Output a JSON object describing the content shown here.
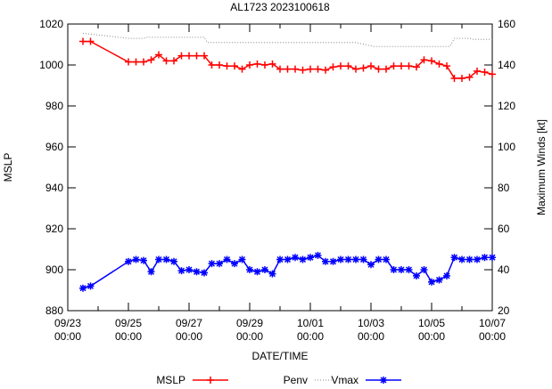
{
  "chart_data": {
    "type": "line",
    "title": "AL1723 2023100618",
    "xlabel": "DATE/TIME",
    "ylabel": "MSLP",
    "y2label": "Maximum Winds [kt]",
    "x_unit": "days since 09/23 00:00",
    "xlim": [
      0,
      14
    ],
    "ylim": [
      880,
      1020
    ],
    "y2lim": [
      20,
      160
    ],
    "grid": false,
    "legend_position": "bottom",
    "x_ticks": [
      {
        "day": 0,
        "line1": "09/23",
        "line2": "00:00"
      },
      {
        "day": 2,
        "line1": "09/25",
        "line2": "00:00"
      },
      {
        "day": 4,
        "line1": "09/27",
        "line2": "00:00"
      },
      {
        "day": 6,
        "line1": "09/29",
        "line2": "00:00"
      },
      {
        "day": 8,
        "line1": "10/01",
        "line2": "00:00"
      },
      {
        "day": 10,
        "line1": "10/03",
        "line2": "00:00"
      },
      {
        "day": 12,
        "line1": "10/05",
        "line2": "00:00"
      },
      {
        "day": 14,
        "line1": "10/07",
        "line2": "00:00"
      }
    ],
    "y_ticks": [
      "880",
      "900",
      "920",
      "940",
      "960",
      "980",
      "1000",
      "1020"
    ],
    "y2_ticks": [
      "20",
      "40",
      "60",
      "80",
      "100",
      "120",
      "140",
      "160"
    ],
    "colors": {
      "MSLP": "#ff0000",
      "Penv": "#888888",
      "Vmax": "#0000ff"
    },
    "series": [
      {
        "name": "MSLP",
        "axis": "y",
        "style": "line-plus",
        "points": [
          [
            0.5,
            1011.5
          ],
          [
            0.75,
            1011.5
          ],
          [
            2.0,
            1001.5
          ],
          [
            2.25,
            1001.5
          ],
          [
            2.5,
            1001.5
          ],
          [
            2.75,
            1002.5
          ],
          [
            3.0,
            1005
          ],
          [
            3.25,
            1002
          ],
          [
            3.5,
            1002
          ],
          [
            3.75,
            1004.5
          ],
          [
            4.0,
            1004.5
          ],
          [
            4.25,
            1004.5
          ],
          [
            4.5,
            1004.5
          ],
          [
            4.75,
            1000
          ],
          [
            5.0,
            1000
          ],
          [
            5.25,
            999.5
          ],
          [
            5.5,
            999.5
          ],
          [
            5.75,
            998
          ],
          [
            6.0,
            1000
          ],
          [
            6.25,
            1000.5
          ],
          [
            6.5,
            1000
          ],
          [
            6.75,
            1000.5
          ],
          [
            7.0,
            998
          ],
          [
            7.25,
            998
          ],
          [
            7.5,
            998
          ],
          [
            7.75,
            997.5
          ],
          [
            8.0,
            998
          ],
          [
            8.25,
            998
          ],
          [
            8.5,
            997.5
          ],
          [
            8.75,
            999
          ],
          [
            9.0,
            999.5
          ],
          [
            9.25,
            999.5
          ],
          [
            9.5,
            998
          ],
          [
            9.75,
            998.5
          ],
          [
            10.0,
            999.5
          ],
          [
            10.25,
            998
          ],
          [
            10.5,
            998
          ],
          [
            10.75,
            999.5
          ],
          [
            11.0,
            999.5
          ],
          [
            11.25,
            999.5
          ],
          [
            11.5,
            999
          ],
          [
            11.75,
            1002.5
          ],
          [
            12.0,
            1002
          ],
          [
            12.25,
            1000.5
          ],
          [
            12.5,
            999.5
          ],
          [
            12.75,
            993.5
          ],
          [
            13.0,
            993.5
          ],
          [
            13.25,
            994
          ],
          [
            13.5,
            997
          ],
          [
            13.75,
            996.5
          ],
          [
            14.0,
            995.5
          ]
        ]
      },
      {
        "name": "Penv",
        "axis": "y",
        "style": "dotted",
        "points": [
          [
            0.5,
            1015.5
          ],
          [
            2.0,
            1013
          ],
          [
            2.5,
            1013
          ],
          [
            2.6,
            1013.5
          ],
          [
            4.5,
            1013.5
          ],
          [
            4.6,
            1011
          ],
          [
            9.5,
            1011
          ],
          [
            9.8,
            1010
          ],
          [
            10.1,
            1009
          ],
          [
            12.6,
            1009
          ],
          [
            12.75,
            1013
          ],
          [
            13.25,
            1013
          ],
          [
            13.4,
            1012.5
          ],
          [
            14.0,
            1012.5
          ]
        ]
      },
      {
        "name": "Vmax",
        "axis": "y2",
        "style": "line-star",
        "points": [
          [
            0.5,
            31
          ],
          [
            0.75,
            32
          ],
          [
            2.0,
            44
          ],
          [
            2.25,
            45
          ],
          [
            2.5,
            44.5
          ],
          [
            2.75,
            39
          ],
          [
            3.0,
            45
          ],
          [
            3.25,
            45
          ],
          [
            3.5,
            44
          ],
          [
            3.75,
            39.5
          ],
          [
            4.0,
            40
          ],
          [
            4.25,
            39
          ],
          [
            4.5,
            38.5
          ],
          [
            4.75,
            43
          ],
          [
            5.0,
            43
          ],
          [
            5.25,
            45
          ],
          [
            5.5,
            43
          ],
          [
            5.75,
            45
          ],
          [
            6.0,
            40
          ],
          [
            6.25,
            39
          ],
          [
            6.5,
            40
          ],
          [
            6.75,
            38
          ],
          [
            7.0,
            45
          ],
          [
            7.25,
            45
          ],
          [
            7.5,
            46
          ],
          [
            7.75,
            45
          ],
          [
            8.0,
            46
          ],
          [
            8.25,
            47
          ],
          [
            8.5,
            44
          ],
          [
            8.75,
            44
          ],
          [
            9.0,
            45
          ],
          [
            9.25,
            45
          ],
          [
            9.5,
            45
          ],
          [
            9.75,
            45
          ],
          [
            10.0,
            42.5
          ],
          [
            10.25,
            45
          ],
          [
            10.5,
            45
          ],
          [
            10.75,
            40
          ],
          [
            11.0,
            40
          ],
          [
            11.25,
            40
          ],
          [
            11.5,
            37
          ],
          [
            11.75,
            40
          ],
          [
            12.0,
            34
          ],
          [
            12.25,
            35
          ],
          [
            12.5,
            37
          ],
          [
            12.75,
            46
          ],
          [
            13.0,
            45
          ],
          [
            13.25,
            45
          ],
          [
            13.5,
            45
          ],
          [
            13.75,
            46
          ],
          [
            14.0,
            46
          ]
        ]
      }
    ]
  }
}
